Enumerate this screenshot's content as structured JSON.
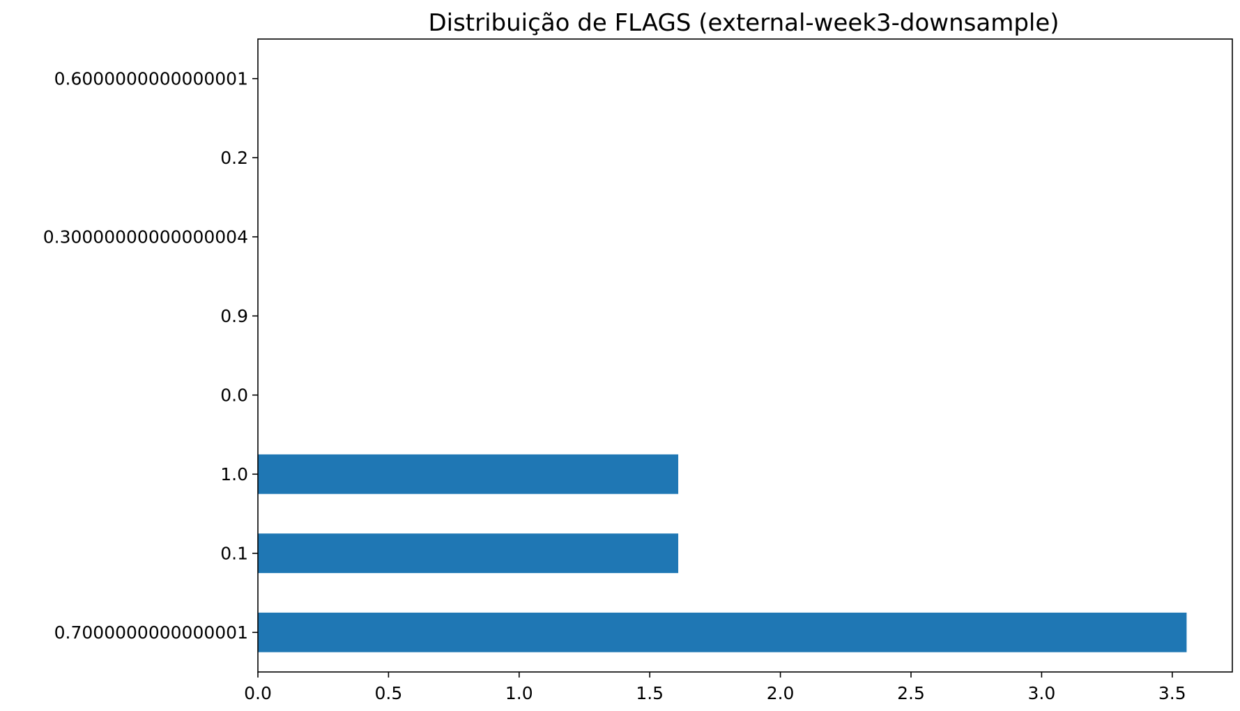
{
  "chart_data": {
    "type": "bar",
    "orientation": "horizontal",
    "title": "Distribuição de FLAGS (external-week3-downsample)",
    "xlabel": "",
    "ylabel": "",
    "categories": [
      "0.7000000000000001",
      "0.1",
      "1.0",
      "0.0",
      "0.9",
      "0.30000000000000004",
      "0.2",
      "0.6000000000000001"
    ],
    "values": [
      3.555,
      1.609,
      1.609,
      0,
      0,
      0,
      0,
      0
    ],
    "xlim": [
      0,
      3.73
    ],
    "xticks": [
      "0.0",
      "0.5",
      "1.0",
      "1.5",
      "2.0",
      "2.5",
      "3.0",
      "3.5"
    ],
    "grid": false,
    "legend": "none",
    "bar_color": "#1f77b4"
  }
}
